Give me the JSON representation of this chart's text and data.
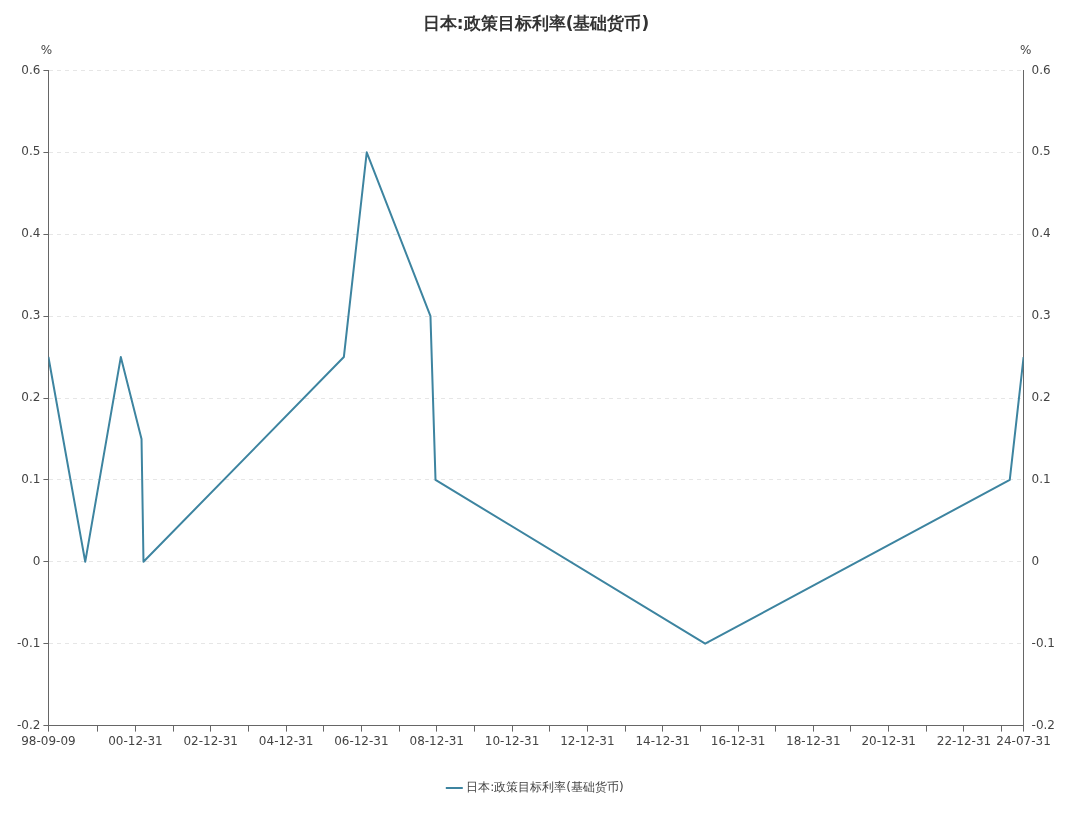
{
  "chart_data": {
    "type": "line",
    "title": "日本:政策目标利率(基础货币)",
    "ylabel": "%",
    "y2label": "%",
    "x": [
      "1998-09-09",
      "1999-09-01",
      "2000-08-11",
      "2001-02-28",
      "2001-03-19",
      "2006-07-14",
      "2007-02-21",
      "2008-10-31",
      "2008-12-19",
      "2016-02-16",
      "2024-03-19",
      "2024-07-31"
    ],
    "series": [
      {
        "name": "日本:政策目标利率(基础货币)",
        "color": "#3d84a0",
        "values": [
          0.25,
          0,
          0.25,
          0.15,
          0,
          0.25,
          0.5,
          0.3,
          0.1,
          -0.1,
          0.1,
          0.25
        ]
      }
    ],
    "xlim": [
      "1998-09-09",
      "2024-07-31"
    ],
    "xticks": [
      {
        "value": "1998-09-09",
        "label": "98-09-09"
      },
      {
        "value": "1999-12-31",
        "label": null
      },
      {
        "value": "2000-12-31",
        "label": "00-12-31"
      },
      {
        "value": "2001-12-31",
        "label": null
      },
      {
        "value": "2002-12-31",
        "label": "02-12-31"
      },
      {
        "value": "2003-12-31",
        "label": null
      },
      {
        "value": "2004-12-31",
        "label": "04-12-31"
      },
      {
        "value": "2005-12-31",
        "label": null
      },
      {
        "value": "2006-12-31",
        "label": "06-12-31"
      },
      {
        "value": "2007-12-31",
        "label": null
      },
      {
        "value": "2008-12-31",
        "label": "08-12-31"
      },
      {
        "value": "2009-12-31",
        "label": null
      },
      {
        "value": "2010-12-31",
        "label": "10-12-31"
      },
      {
        "value": "2011-12-31",
        "label": null
      },
      {
        "value": "2012-12-31",
        "label": "12-12-31"
      },
      {
        "value": "2013-12-31",
        "label": null
      },
      {
        "value": "2014-12-31",
        "label": "14-12-31"
      },
      {
        "value": "2015-12-31",
        "label": null
      },
      {
        "value": "2016-12-31",
        "label": "16-12-31"
      },
      {
        "value": "2017-12-31",
        "label": null
      },
      {
        "value": "2018-12-31",
        "label": "18-12-31"
      },
      {
        "value": "2019-12-31",
        "label": null
      },
      {
        "value": "2020-12-31",
        "label": "20-12-31"
      },
      {
        "value": "2021-12-31",
        "label": null
      },
      {
        "value": "2022-12-31",
        "label": "22-12-31"
      },
      {
        "value": "2023-12-31",
        "label": null
      },
      {
        "value": "2024-07-31",
        "label": "24-07-31"
      }
    ],
    "ylim": [
      -0.2,
      0.6
    ],
    "yticks": [
      -0.2,
      -0.1,
      0,
      0.1,
      0.2,
      0.3,
      0.4,
      0.5,
      0.6
    ],
    "y2lim": [
      -0.2,
      0.6
    ],
    "y2ticks": [
      -0.2,
      -0.1,
      0,
      0.1,
      0.2,
      0.3,
      0.4,
      0.5,
      0.6
    ],
    "grid": "y",
    "legend": "bottom",
    "marker": "none",
    "line_style": "solid"
  }
}
